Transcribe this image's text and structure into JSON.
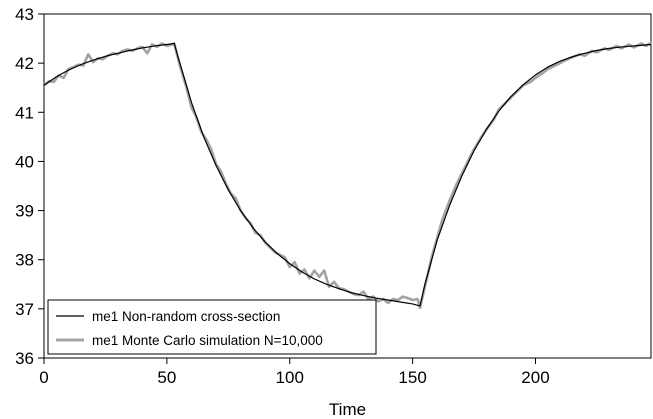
{
  "chart_data": {
    "type": "line",
    "title": "",
    "xlabel": "Time",
    "ylabel": "",
    "xlim": [
      0,
      247
    ],
    "ylim": [
      36,
      43
    ],
    "x_ticks": [
      0,
      50,
      100,
      150,
      200
    ],
    "x_tick_labels": [
      "0",
      "50",
      "100",
      "150",
      "200"
    ],
    "y_ticks": [
      36,
      37,
      38,
      39,
      40,
      41,
      42,
      43
    ],
    "y_tick_labels": [
      "36",
      "37",
      "38",
      "39",
      "40",
      "41",
      "42",
      "43"
    ],
    "grid": false,
    "legend_position": "bottom-left",
    "series": [
      {
        "name": "me1 Non-random cross-section",
        "color": "#000000",
        "x": [
          0,
          5,
          10,
          15,
          20,
          25,
          30,
          35,
          40,
          45,
          50,
          53,
          55,
          60,
          65,
          70,
          75,
          80,
          85,
          90,
          95,
          100,
          105,
          110,
          115,
          120,
          125,
          130,
          135,
          140,
          145,
          150,
          153,
          155,
          160,
          165,
          170,
          175,
          180,
          185,
          190,
          195,
          200,
          205,
          210,
          215,
          220,
          225,
          230,
          235,
          240,
          247
        ],
        "y": [
          41.55,
          41.72,
          41.86,
          41.97,
          42.06,
          42.14,
          42.2,
          42.26,
          42.31,
          42.35,
          42.38,
          42.4,
          42.05,
          41.2,
          40.5,
          39.92,
          39.42,
          39.0,
          38.65,
          38.36,
          38.12,
          37.92,
          37.75,
          37.61,
          37.5,
          37.41,
          37.33,
          37.27,
          37.22,
          37.18,
          37.14,
          37.1,
          37.06,
          37.5,
          38.4,
          39.1,
          39.7,
          40.22,
          40.65,
          41.02,
          41.32,
          41.56,
          41.76,
          41.92,
          42.04,
          42.13,
          42.2,
          42.26,
          42.3,
          42.33,
          42.35,
          42.38
        ]
      },
      {
        "name": "me1 Monte Carlo simulation N=10,000",
        "color": "#a3a3a3",
        "x": [
          0,
          2,
          4,
          6,
          8,
          10,
          12,
          14,
          16,
          18,
          20,
          22,
          24,
          26,
          28,
          30,
          32,
          34,
          36,
          38,
          40,
          42,
          44,
          46,
          48,
          50,
          52,
          53,
          55,
          58,
          60,
          62,
          64,
          66,
          68,
          70,
          72,
          74,
          76,
          78,
          80,
          82,
          84,
          86,
          88,
          90,
          92,
          94,
          96,
          98,
          100,
          102,
          104,
          106,
          108,
          110,
          112,
          114,
          116,
          118,
          120,
          122,
          124,
          126,
          128,
          130,
          132,
          134,
          136,
          138,
          140,
          142,
          144,
          146,
          148,
          150,
          152,
          153,
          155,
          158,
          160,
          162,
          165,
          168,
          170,
          172,
          175,
          178,
          180,
          183,
          185,
          188,
          190,
          193,
          195,
          198,
          200,
          203,
          205,
          208,
          210,
          213,
          215,
          218,
          220,
          223,
          225,
          228,
          230,
          233,
          235,
          238,
          240,
          243,
          245,
          247
        ],
        "y": [
          41.55,
          41.63,
          41.62,
          41.75,
          41.7,
          41.88,
          41.92,
          41.97,
          41.95,
          42.18,
          42.02,
          42.1,
          42.08,
          42.15,
          42.2,
          42.18,
          42.25,
          42.28,
          42.25,
          42.3,
          42.33,
          42.2,
          42.38,
          42.33,
          42.4,
          42.35,
          42.38,
          42.4,
          42.0,
          41.5,
          41.1,
          40.9,
          40.6,
          40.45,
          40.25,
          39.95,
          39.8,
          39.55,
          39.35,
          39.25,
          39.0,
          38.85,
          38.75,
          38.55,
          38.5,
          38.35,
          38.25,
          38.15,
          38.1,
          38.05,
          37.85,
          37.95,
          37.72,
          37.8,
          37.62,
          37.78,
          37.65,
          37.78,
          37.45,
          37.55,
          37.42,
          37.4,
          37.35,
          37.3,
          37.28,
          37.35,
          37.2,
          37.25,
          37.15,
          37.2,
          37.12,
          37.2,
          37.18,
          37.25,
          37.22,
          37.18,
          37.2,
          37.02,
          37.45,
          38.1,
          38.45,
          38.8,
          39.2,
          39.55,
          39.75,
          39.95,
          40.25,
          40.5,
          40.65,
          40.85,
          41.05,
          41.2,
          41.3,
          41.45,
          41.55,
          41.62,
          41.7,
          41.8,
          41.88,
          41.95,
          42.0,
          42.08,
          42.12,
          42.18,
          42.15,
          42.25,
          42.22,
          42.3,
          42.27,
          42.35,
          42.3,
          42.38,
          42.32,
          42.4,
          42.35,
          42.42
        ]
      }
    ]
  }
}
